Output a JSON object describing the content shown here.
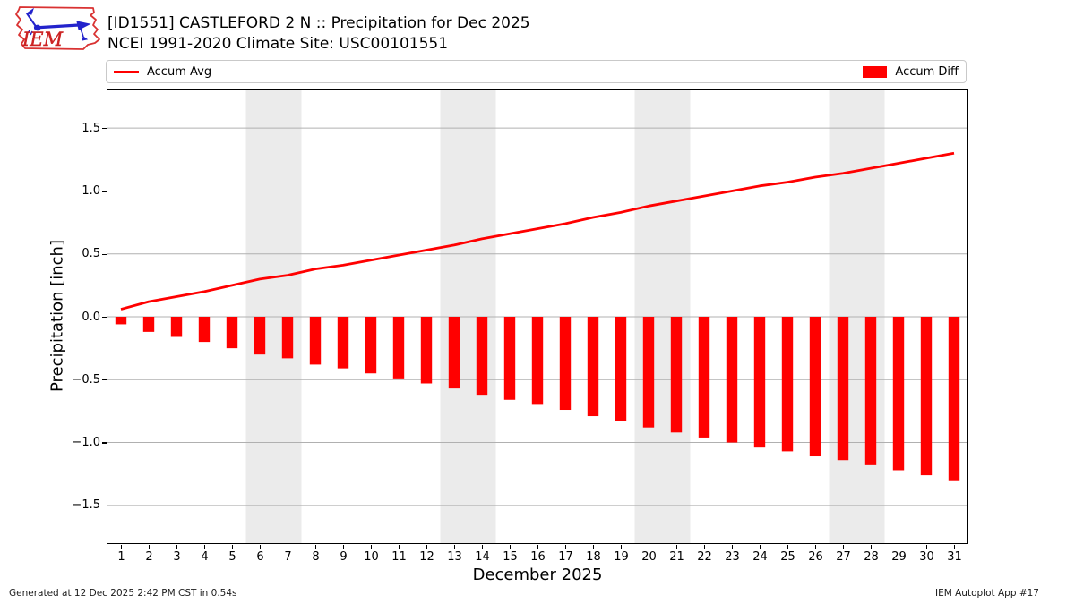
{
  "header": {
    "logo_text": "IEM",
    "title": "[ID1551] CASTLEFORD 2 N :: Precipitation for Dec 2025",
    "subtitle": "NCEI 1991-2020 Climate Site: USC00101551"
  },
  "legend": {
    "avg_label": "Accum Avg",
    "diff_label": "Accum Diff"
  },
  "chart_data": {
    "type": "line+bar",
    "title": "[ID1551] CASTLEFORD 2 N :: Precipitation for Dec 2025",
    "subtitle": "NCEI 1991-2020 Climate Site: USC00101551",
    "xlabel": "December 2025",
    "ylabel": "Precipitation [inch]",
    "ylim": [
      -1.8,
      1.8
    ],
    "xlim": [
      0.5,
      31.5
    ],
    "grid": true,
    "legend_position": "top",
    "x": [
      1,
      2,
      3,
      4,
      5,
      6,
      7,
      8,
      9,
      10,
      11,
      12,
      13,
      14,
      15,
      16,
      17,
      18,
      19,
      20,
      21,
      22,
      23,
      24,
      25,
      26,
      27,
      28,
      29,
      30,
      31
    ],
    "yticks": [
      1.5,
      1.0,
      0.5,
      0.0,
      -0.5,
      -1.0,
      -1.5
    ],
    "ytick_labels": [
      "1.5",
      "1.0",
      "0.5",
      "0.0",
      "−0.5",
      "−1.0",
      "−1.5"
    ],
    "series": [
      {
        "name": "Accum Avg",
        "type": "line",
        "color": "#ff0000",
        "values": [
          0.06,
          0.12,
          0.16,
          0.2,
          0.25,
          0.3,
          0.33,
          0.38,
          0.41,
          0.45,
          0.49,
          0.53,
          0.57,
          0.62,
          0.66,
          0.7,
          0.74,
          0.79,
          0.83,
          0.88,
          0.92,
          0.96,
          1.0,
          1.04,
          1.07,
          1.11,
          1.14,
          1.18,
          1.22,
          1.26,
          1.3
        ]
      },
      {
        "name": "Accum Diff",
        "type": "bar",
        "color": "#ff0000",
        "values": [
          -0.06,
          -0.12,
          -0.16,
          -0.2,
          -0.25,
          -0.3,
          -0.33,
          -0.38,
          -0.41,
          -0.45,
          -0.49,
          -0.53,
          -0.57,
          -0.62,
          -0.66,
          -0.7,
          -0.74,
          -0.79,
          -0.83,
          -0.88,
          -0.92,
          -0.96,
          -1.0,
          -1.04,
          -1.07,
          -1.11,
          -1.14,
          -1.18,
          -1.22,
          -1.26,
          -1.3
        ]
      }
    ],
    "weekend_bands": [
      [
        5.5,
        7.5
      ],
      [
        12.5,
        14.5
      ],
      [
        19.5,
        21.5
      ],
      [
        26.5,
        28.5
      ]
    ],
    "colors": {
      "band": "#ebebeb",
      "grid": "#b0b0b0",
      "axis": "#000000",
      "accent": "#ff0000"
    }
  },
  "footer": {
    "generated": "Generated at 12 Dec 2025 2:42 PM CST in 0.54s",
    "app": "IEM Autoplot App #17"
  }
}
